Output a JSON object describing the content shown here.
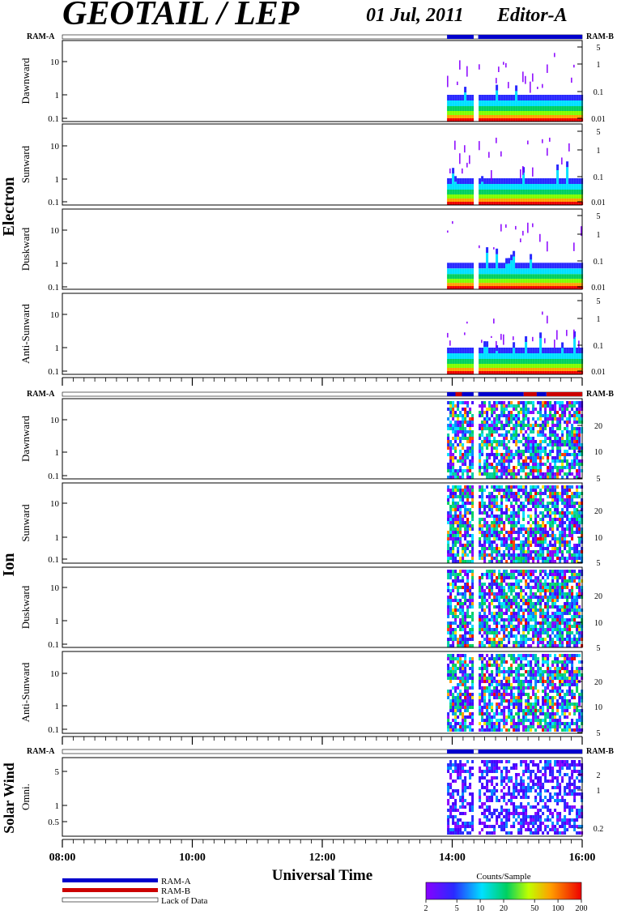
{
  "header": {
    "title": "GEOTAIL / LEP",
    "date": "01 Jul, 2011",
    "editor": "Editor-A"
  },
  "mode_labels": {
    "left": "RAM-A",
    "right": "RAM-B"
  },
  "groups": {
    "electron": "Electron",
    "ion": "Ion",
    "solar_wind": "Solar Wind"
  },
  "x_axis": {
    "label": "Universal Time",
    "ticks": [
      "08:00",
      "10:00",
      "12:00",
      "14:00",
      "16:00"
    ]
  },
  "legend": {
    "ram_a": "RAM-A",
    "ram_b": "RAM-B",
    "lack": "Lack of Data"
  },
  "colorbar": {
    "title": "Counts/Sample",
    "ticks": [
      "2",
      "5",
      "10",
      "20",
      "50",
      "100",
      "200"
    ]
  },
  "colors": {
    "ram_a": "#0000cc",
    "ram_b": "#cc0000",
    "lack": "#ffffff",
    "axis": "#000000"
  },
  "chart_data": {
    "type": "heatmap",
    "x_range_hours": [
      8,
      16
    ],
    "data_start_hour": 13.92,
    "data_gap_hour": [
      14.33,
      14.4
    ],
    "panels": [
      {
        "group": "Electron",
        "label": "Dawnward",
        "left_ticks": [
          "10",
          "1",
          "0.1"
        ],
        "right_ticks": [
          "5",
          "1",
          "0.1",
          "0.01"
        ]
      },
      {
        "group": "Electron",
        "label": "Sunward",
        "left_ticks": [
          "10",
          "1",
          "0.1"
        ],
        "right_ticks": [
          "5",
          "1",
          "0.1",
          "0.01"
        ]
      },
      {
        "group": "Electron",
        "label": "Duskward",
        "left_ticks": [
          "10",
          "1",
          "0.1"
        ],
        "right_ticks": [
          "5",
          "1",
          "0.1",
          "0.01"
        ]
      },
      {
        "group": "Electron",
        "label": "Anti-Sunward",
        "left_ticks": [
          "10",
          "1",
          "0.1"
        ],
        "right_ticks": [
          "5",
          "1",
          "0.1",
          "0.01"
        ]
      },
      {
        "group": "Ion",
        "label": "Dawnward",
        "left_ticks": [
          "10",
          "1",
          "0.1"
        ],
        "right_ticks": [
          "20",
          "10",
          "5"
        ]
      },
      {
        "group": "Ion",
        "label": "Sunward",
        "left_ticks": [
          "10",
          "1",
          "0.1"
        ],
        "right_ticks": [
          "20",
          "10",
          "5"
        ]
      },
      {
        "group": "Ion",
        "label": "Duskward",
        "left_ticks": [
          "10",
          "1",
          "0.1"
        ],
        "right_ticks": [
          "20",
          "10",
          "5"
        ]
      },
      {
        "group": "Ion",
        "label": "Anti-Sunward",
        "left_ticks": [
          "10",
          "1",
          "0.1"
        ],
        "right_ticks": [
          "20",
          "10",
          "5"
        ]
      },
      {
        "group": "Solar Wind",
        "label": "Omni.",
        "left_ticks": [
          "5",
          "1",
          "0.5"
        ],
        "right_ticks": [
          "2",
          "1",
          "0.2"
        ]
      }
    ],
    "mode_bars": [
      {
        "segments": [
          {
            "from": 13.92,
            "to": 14.33,
            "mode": "ram_a"
          },
          {
            "from": 14.4,
            "to": 16.0,
            "mode": "ram_a"
          }
        ]
      },
      {
        "segments": [
          {
            "from": 13.92,
            "to": 14.05,
            "mode": "ram_a"
          },
          {
            "from": 14.05,
            "to": 14.15,
            "mode": "ram_b"
          },
          {
            "from": 14.15,
            "to": 14.33,
            "mode": "ram_a"
          },
          {
            "from": 14.4,
            "to": 15.1,
            "mode": "ram_a"
          },
          {
            "from": 15.1,
            "to": 15.3,
            "mode": "ram_b"
          },
          {
            "from": 15.3,
            "to": 15.45,
            "mode": "ram_a"
          },
          {
            "from": 15.45,
            "to": 16.0,
            "mode": "ram_b"
          }
        ]
      },
      {
        "segments": [
          {
            "from": 13.92,
            "to": 14.33,
            "mode": "ram_a"
          },
          {
            "from": 14.4,
            "to": 16.0,
            "mode": "ram_a"
          }
        ]
      }
    ]
  }
}
